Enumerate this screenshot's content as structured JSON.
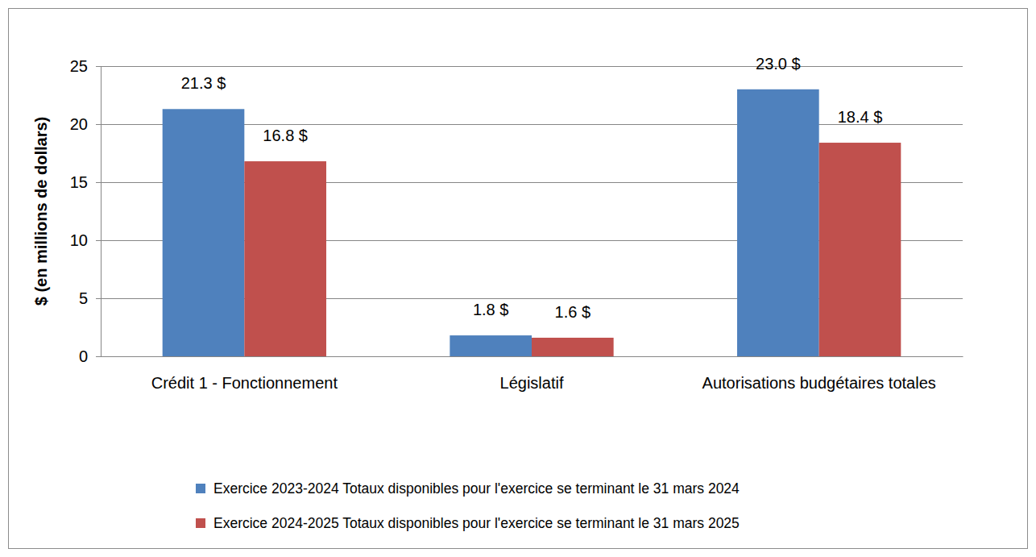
{
  "chart_data": {
    "type": "bar",
    "y_label": "$ (en millions de dollars)",
    "categories": [
      "Crédit 1 - Fonctionnement",
      "Législatif",
      "Autorisations budgétaires totales"
    ],
    "series": [
      {
        "name": "Exercice 2023-2024 Totaux disponibles pour l'exercice se terminant le 31 mars 2024",
        "color": "#4f81bd",
        "values": [
          21.3,
          1.8,
          23.0
        ],
        "value_labels": [
          "21.3 $",
          "1.8 $",
          "23.0 $"
        ]
      },
      {
        "name": "Exercice 2024-2025 Totaux disponibles pour l'exercice se terminant le 31 mars 2025",
        "color": "#c0504d",
        "values": [
          16.8,
          1.6,
          18.4
        ],
        "value_labels": [
          "16.8 $",
          "1.6 $",
          "18.4 $"
        ]
      }
    ],
    "ylim": [
      0,
      25
    ],
    "yticks": [
      0,
      5,
      10,
      15,
      20,
      25
    ],
    "grid": true,
    "data_labels": true,
    "legend": "bottom"
  }
}
